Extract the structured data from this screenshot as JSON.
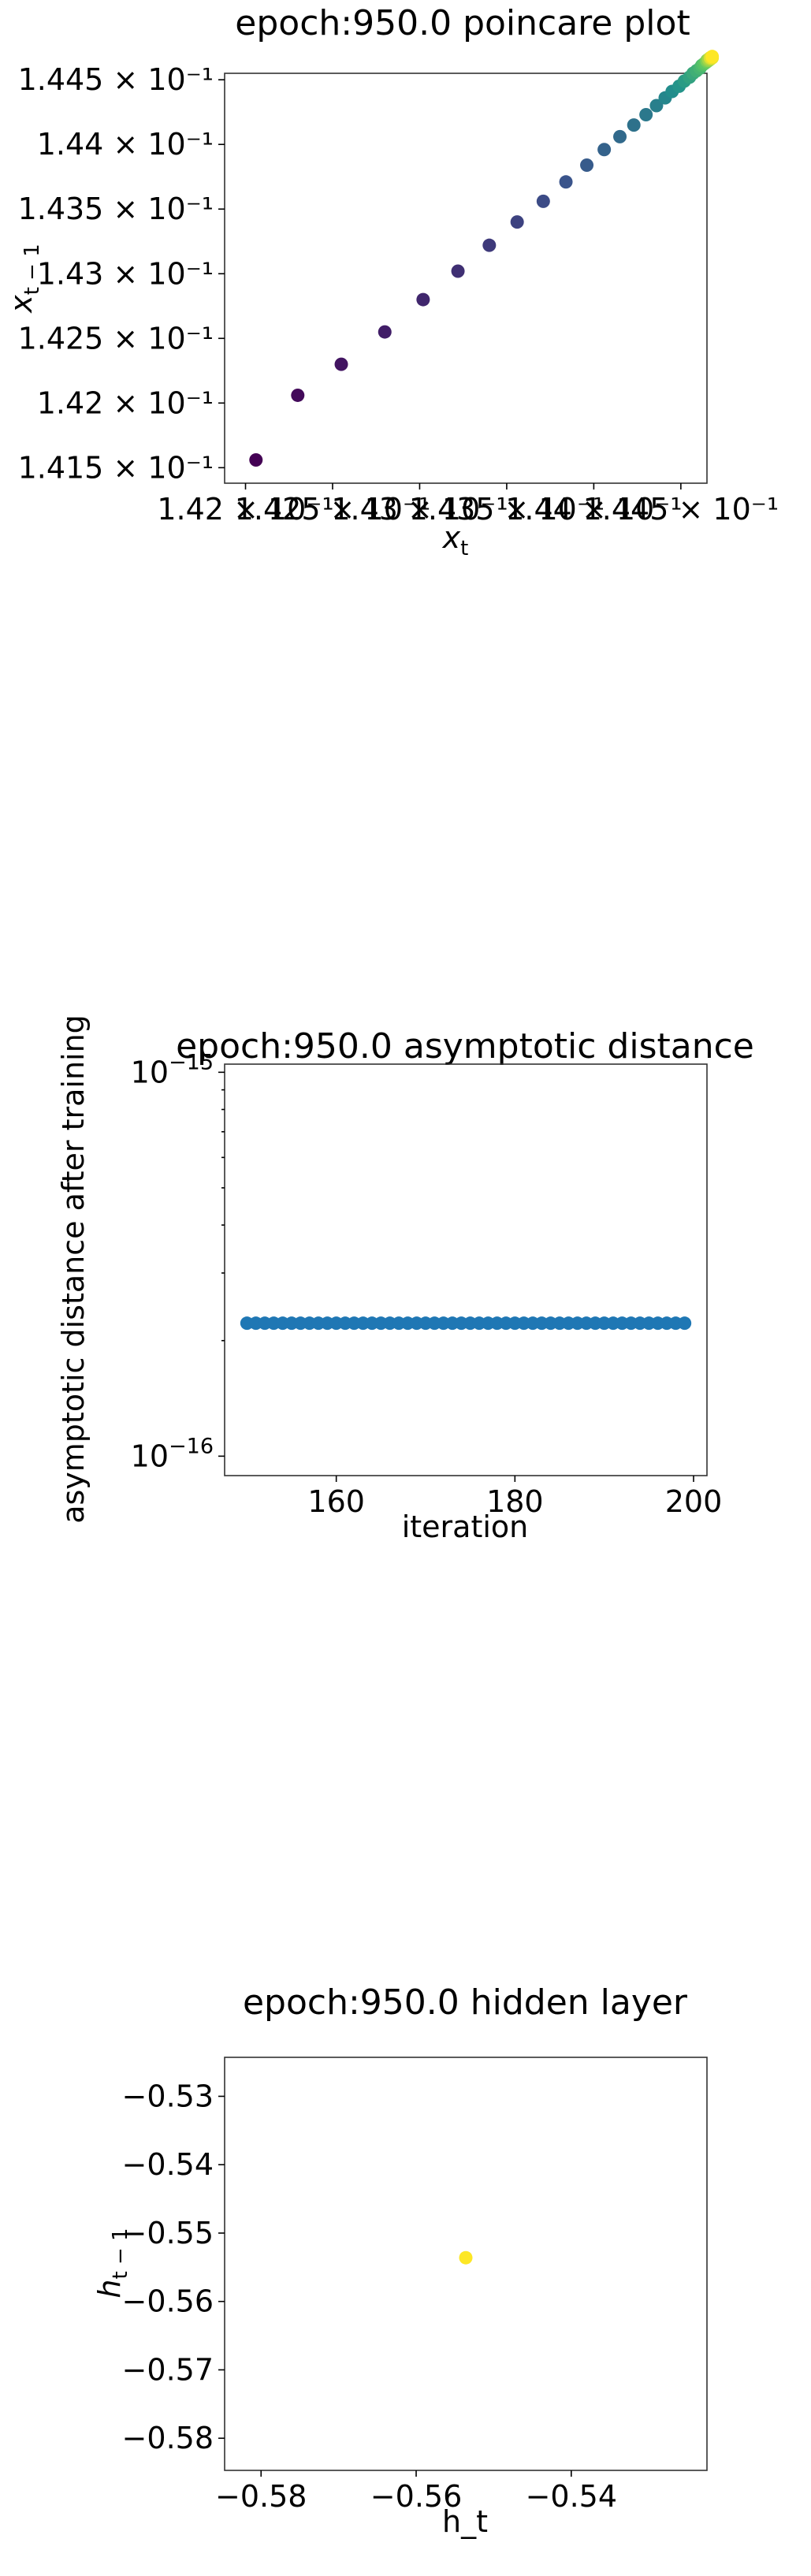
{
  "chart_data": [
    {
      "type": "scatter",
      "title": "epoch:950.0 poincare plot",
      "xlabel": "x",
      "xlabel_sub": "t",
      "ylabel": "x",
      "ylabel_sub": "t − 1",
      "xlim": [
        0.14188,
        0.14465
      ],
      "ylim": [
        0.14138,
        0.14455
      ],
      "xticks": [
        {
          "value": 0.142,
          "label": "1.42 × 10⁻¹"
        },
        {
          "value": 0.1425,
          "label": "1.425 × 10⁻¹"
        },
        {
          "value": 0.143,
          "label": "1.43 × 10⁻¹"
        },
        {
          "value": 0.1435,
          "label": "1.435 × 10⁻¹"
        },
        {
          "value": 0.144,
          "label": "1.44 × 10⁻¹"
        },
        {
          "value": 0.1445,
          "label": "1.445 × 10⁻¹"
        }
      ],
      "yticks": [
        {
          "value": 0.1415,
          "label": "1.415 × 10⁻¹"
        },
        {
          "value": 0.142,
          "label": "1.42 × 10⁻¹"
        },
        {
          "value": 0.1425,
          "label": "1.425 × 10⁻¹"
        },
        {
          "value": 0.143,
          "label": "1.43 × 10⁻¹"
        },
        {
          "value": 0.1435,
          "label": "1.435 × 10⁻¹"
        },
        {
          "value": 0.144,
          "label": "1.44 × 10⁻¹"
        },
        {
          "value": 0.1445,
          "label": "1.445 × 10⁻¹"
        }
      ],
      "colormap": "viridis",
      "x": [
        0.14206,
        0.1423,
        0.14255,
        0.1428,
        0.14302,
        0.14322,
        0.1434,
        0.14356,
        0.14371,
        0.14384,
        0.14396,
        0.14406,
        0.14415,
        0.14423,
        0.1443,
        0.14436,
        0.14441,
        0.14445,
        0.14449,
        0.14452,
        0.14455,
        0.14457,
        0.14459,
        0.14461,
        0.14462,
        0.14463,
        0.14464,
        0.14465,
        0.14465,
        0.14466,
        0.14466,
        0.14467,
        0.14467,
        0.14467,
        0.14468,
        0.14468
      ],
      "y": [
        0.14156,
        0.14206,
        0.1423,
        0.14255,
        0.1428,
        0.14302,
        0.14322,
        0.1434,
        0.14356,
        0.14371,
        0.14384,
        0.14396,
        0.14406,
        0.14415,
        0.14423,
        0.1443,
        0.14436,
        0.14441,
        0.14445,
        0.14449,
        0.14452,
        0.14455,
        0.14457,
        0.14459,
        0.14461,
        0.14462,
        0.14463,
        0.14464,
        0.14465,
        0.14465,
        0.14466,
        0.14466,
        0.14467,
        0.14467,
        0.14467,
        0.14468
      ]
    },
    {
      "type": "scatter",
      "title": "epoch:950.0 asymptotic distance",
      "xlabel": "iteration",
      "ylabel": "asymptotic distance after training",
      "yscale": "log",
      "xlim": [
        147.5,
        201.5
      ],
      "ylim": [
        8.9e-17,
        1.05e-15
      ],
      "xticks": [
        {
          "value": 160,
          "label": "160"
        },
        {
          "value": 180,
          "label": "180"
        },
        {
          "value": 200,
          "label": "200"
        }
      ],
      "yticks": [
        {
          "value": 1e-15,
          "base": "10",
          "exp": "−15"
        },
        {
          "value": 1e-16,
          "base": "10",
          "exp": "−16"
        }
      ],
      "color": "#1f77b4",
      "x_start": 150,
      "x_end": 199,
      "value": 2.22e-16
    },
    {
      "type": "scatter",
      "title": "epoch:950.0 hidden layer",
      "xlabel": "h_t",
      "ylabel": "h",
      "ylabel_sub": "t − 1",
      "xlim": [
        -0.5847,
        -0.5225
      ],
      "ylim": [
        -0.5847,
        -0.5243
      ],
      "xticks": [
        {
          "value": -0.58,
          "label": "−0.58"
        },
        {
          "value": -0.56,
          "label": "−0.56"
        },
        {
          "value": -0.54,
          "label": "−0.54"
        }
      ],
      "yticks": [
        {
          "value": -0.53,
          "label": "−0.53"
        },
        {
          "value": -0.54,
          "label": "−0.54"
        },
        {
          "value": -0.55,
          "label": "−0.55"
        },
        {
          "value": -0.56,
          "label": "−0.56"
        },
        {
          "value": -0.57,
          "label": "−0.57"
        },
        {
          "value": -0.58,
          "label": "−0.58"
        }
      ],
      "color": "#fde725",
      "x": [
        -0.5536
      ],
      "y": [
        -0.5536
      ]
    }
  ]
}
